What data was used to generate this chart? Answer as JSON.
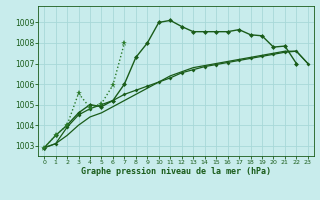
{
  "title": "Graphe pression niveau de la mer (hPa)",
  "bg_color": "#c8ecec",
  "grid_color": "#a8d8d8",
  "line_color_dark": "#1a5c1a",
  "line_color_med": "#2a7a2a",
  "xlim": [
    -0.5,
    23.5
  ],
  "ylim": [
    1002.5,
    1009.8
  ],
  "yticks": [
    1003,
    1004,
    1005,
    1006,
    1007,
    1008,
    1009
  ],
  "xticks": [
    0,
    1,
    2,
    3,
    4,
    5,
    6,
    7,
    8,
    9,
    10,
    11,
    12,
    13,
    14,
    15,
    16,
    17,
    18,
    19,
    20,
    21,
    22,
    23
  ],
  "series1_x": [
    0,
    1,
    2,
    3,
    4,
    5,
    6,
    7,
    8,
    9,
    10,
    11,
    12,
    13,
    14,
    15,
    16,
    17,
    18,
    19,
    20,
    21,
    22
  ],
  "series1_y": [
    1002.9,
    1003.5,
    1004.0,
    1004.6,
    1005.0,
    1004.9,
    1005.2,
    1006.0,
    1007.3,
    1008.0,
    1009.0,
    1009.1,
    1008.8,
    1008.55,
    1008.55,
    1008.55,
    1008.55,
    1008.65,
    1008.4,
    1008.35,
    1007.8,
    1007.85,
    1007.0
  ],
  "series2_x": [
    0,
    1,
    2,
    3,
    4,
    5,
    6,
    7,
    8,
    9,
    10,
    11,
    12,
    13,
    14,
    15,
    16,
    17,
    18,
    19,
    20,
    21,
    22,
    23
  ],
  "series2_y": [
    1002.9,
    1003.1,
    1003.9,
    1004.5,
    1004.8,
    1005.0,
    1005.2,
    1005.5,
    1005.7,
    1005.9,
    1006.1,
    1006.3,
    1006.55,
    1006.7,
    1006.85,
    1006.95,
    1007.05,
    1007.15,
    1007.25,
    1007.35,
    1007.45,
    1007.55,
    1007.6,
    1007.0
  ],
  "series3_x": [
    0,
    1,
    2,
    3,
    4,
    5,
    6,
    7
  ],
  "series3_y": [
    1002.9,
    1003.5,
    1004.0,
    1005.55,
    1004.85,
    1005.05,
    1005.95,
    1008.0
  ],
  "series4_x": [
    0,
    1,
    2,
    3,
    4,
    5,
    6,
    7,
    8,
    9,
    10,
    11,
    12,
    13,
    14,
    15,
    16,
    17,
    18,
    19,
    20,
    21,
    22,
    23
  ],
  "series4_y": [
    1002.9,
    1003.1,
    1003.5,
    1004.0,
    1004.4,
    1004.6,
    1004.9,
    1005.2,
    1005.5,
    1005.8,
    1006.1,
    1006.4,
    1006.6,
    1006.8,
    1006.9,
    1007.0,
    1007.1,
    1007.2,
    1007.3,
    1007.4,
    1007.5,
    1007.6,
    1007.6,
    1007.0
  ]
}
